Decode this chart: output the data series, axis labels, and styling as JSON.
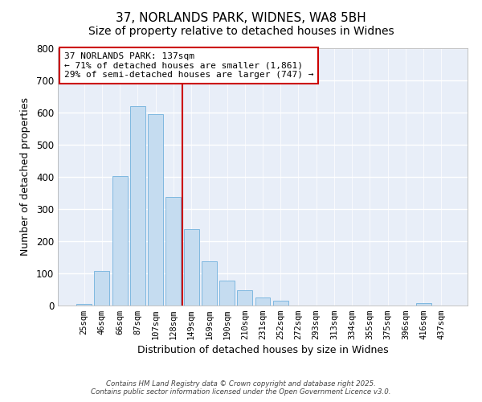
{
  "title": "37, NORLANDS PARK, WIDNES, WA8 5BH",
  "subtitle": "Size of property relative to detached houses in Widnes",
  "xlabel": "Distribution of detached houses by size in Widnes",
  "ylabel": "Number of detached properties",
  "bar_labels": [
    "25sqm",
    "46sqm",
    "66sqm",
    "87sqm",
    "107sqm",
    "128sqm",
    "149sqm",
    "169sqm",
    "190sqm",
    "210sqm",
    "231sqm",
    "252sqm",
    "272sqm",
    "293sqm",
    "313sqm",
    "334sqm",
    "355sqm",
    "375sqm",
    "396sqm",
    "416sqm",
    "437sqm"
  ],
  "bar_values": [
    5,
    107,
    403,
    620,
    596,
    338,
    237,
    138,
    78,
    48,
    24,
    14,
    0,
    0,
    0,
    0,
    0,
    0,
    0,
    8,
    0
  ],
  "bar_color": "#c5dcf0",
  "bar_edge_color": "#7fb8e0",
  "vline_x_index": 6,
  "vline_color": "#cc0000",
  "ylim": [
    0,
    800
  ],
  "yticks": [
    0,
    100,
    200,
    300,
    400,
    500,
    600,
    700,
    800
  ],
  "annotation_title": "37 NORLANDS PARK: 137sqm",
  "annotation_line1": "← 71% of detached houses are smaller (1,861)",
  "annotation_line2": "29% of semi-detached houses are larger (747) →",
  "annotation_box_facecolor": "white",
  "annotation_box_edgecolor": "#cc0000",
  "footer_line1": "Contains HM Land Registry data © Crown copyright and database right 2025.",
  "footer_line2": "Contains public sector information licensed under the Open Government Licence v3.0.",
  "bg_color": "#ffffff",
  "plot_bg_color": "#e8eef8",
  "grid_color": "#ffffff",
  "title_fontsize": 11,
  "subtitle_fontsize": 10
}
